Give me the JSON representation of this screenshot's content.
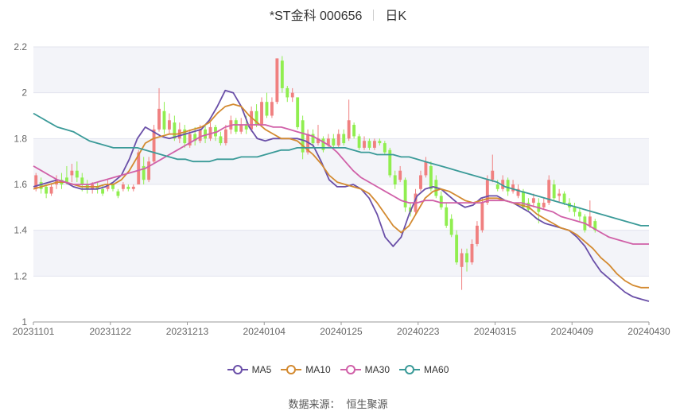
{
  "title": {
    "name": "*ST金科 000656",
    "period": "日K"
  },
  "source": {
    "label": "数据来源：",
    "value": "恒生聚源"
  },
  "chart_data": {
    "type": "candlestick",
    "ylim": [
      1.0,
      2.2
    ],
    "yticks": [
      "1",
      "1.2",
      "1.4",
      "1.6",
      "1.8",
      "2",
      "2.2"
    ],
    "ytick_values": [
      1.0,
      1.2,
      1.4,
      1.6,
      1.8,
      2.0,
      2.2
    ],
    "xticks": [
      "20231101",
      "20231122",
      "20231213",
      "20240104",
      "20240125",
      "20240223",
      "20240315",
      "20240409",
      "20240430"
    ],
    "n_bars": 120,
    "colors": {
      "up": "#f08080",
      "down": "#90ee50"
    },
    "candles": [
      {
        "o": 1.58,
        "c": 1.64,
        "h": 1.65,
        "l": 1.57
      },
      {
        "o": 1.61,
        "c": 1.58,
        "h": 1.63,
        "l": 1.56
      },
      {
        "o": 1.59,
        "c": 1.56,
        "h": 1.6,
        "l": 1.54
      },
      {
        "o": 1.56,
        "c": 1.59,
        "h": 1.6,
        "l": 1.55
      },
      {
        "o": 1.6,
        "c": 1.62,
        "h": 1.64,
        "l": 1.58
      },
      {
        "o": 1.62,
        "c": 1.6,
        "h": 1.65,
        "l": 1.58
      },
      {
        "o": 1.63,
        "c": 1.61,
        "h": 1.68,
        "l": 1.6
      },
      {
        "o": 1.64,
        "c": 1.66,
        "h": 1.69,
        "l": 1.61
      },
      {
        "o": 1.66,
        "c": 1.63,
        "h": 1.7,
        "l": 1.61
      },
      {
        "o": 1.63,
        "c": 1.6,
        "h": 1.65,
        "l": 1.57
      },
      {
        "o": 1.6,
        "c": 1.58,
        "h": 1.62,
        "l": 1.56
      },
      {
        "o": 1.58,
        "c": 1.6,
        "h": 1.61,
        "l": 1.56
      },
      {
        "o": 1.59,
        "c": 1.58,
        "h": 1.61,
        "l": 1.56
      },
      {
        "o": 1.58,
        "c": 1.56,
        "h": 1.6,
        "l": 1.55
      },
      {
        "o": 1.58,
        "c": 1.6,
        "h": 1.62,
        "l": 1.57
      },
      {
        "o": 1.6,
        "c": 1.58,
        "h": 1.61,
        "l": 1.57
      },
      {
        "o": 1.57,
        "c": 1.55,
        "h": 1.58,
        "l": 1.54
      },
      {
        "o": 1.58,
        "c": 1.6,
        "h": 1.61,
        "l": 1.57
      },
      {
        "o": 1.59,
        "c": 1.58,
        "h": 1.6,
        "l": 1.57
      },
      {
        "o": 1.58,
        "c": 1.59,
        "h": 1.6,
        "l": 1.57
      },
      {
        "o": 1.6,
        "c": 1.74,
        "h": 1.75,
        "l": 1.6
      },
      {
        "o": 1.68,
        "c": 1.62,
        "h": 1.72,
        "l": 1.6
      },
      {
        "o": 1.62,
        "c": 1.7,
        "h": 1.72,
        "l": 1.61
      },
      {
        "o": 1.7,
        "c": 1.84,
        "h": 1.86,
        "l": 1.69
      },
      {
        "o": 1.84,
        "c": 1.93,
        "h": 2.02,
        "l": 1.83
      },
      {
        "o": 1.92,
        "c": 1.84,
        "h": 1.96,
        "l": 1.82
      },
      {
        "o": 1.84,
        "c": 1.88,
        "h": 1.91,
        "l": 1.82
      },
      {
        "o": 1.87,
        "c": 1.8,
        "h": 1.9,
        "l": 1.79
      },
      {
        "o": 1.8,
        "c": 1.84,
        "h": 1.87,
        "l": 1.78
      },
      {
        "o": 1.84,
        "c": 1.78,
        "h": 1.86,
        "l": 1.76
      },
      {
        "o": 1.77,
        "c": 1.82,
        "h": 1.84,
        "l": 1.76
      },
      {
        "o": 1.82,
        "c": 1.79,
        "h": 1.85,
        "l": 1.77
      },
      {
        "o": 1.79,
        "c": 1.84,
        "h": 1.86,
        "l": 1.78
      },
      {
        "o": 1.84,
        "c": 1.8,
        "h": 1.86,
        "l": 1.78
      },
      {
        "o": 1.8,
        "c": 1.85,
        "h": 1.87,
        "l": 1.79
      },
      {
        "o": 1.85,
        "c": 1.81,
        "h": 1.86,
        "l": 1.79
      },
      {
        "o": 1.81,
        "c": 1.78,
        "h": 1.83,
        "l": 1.77
      },
      {
        "o": 1.78,
        "c": 1.84,
        "h": 1.86,
        "l": 1.77
      },
      {
        "o": 1.84,
        "c": 1.88,
        "h": 1.9,
        "l": 1.82
      },
      {
        "o": 1.88,
        "c": 1.83,
        "h": 1.89,
        "l": 1.82
      },
      {
        "o": 1.83,
        "c": 1.86,
        "h": 1.89,
        "l": 1.82
      },
      {
        "o": 1.86,
        "c": 1.84,
        "h": 1.9,
        "l": 1.82
      },
      {
        "o": 1.84,
        "c": 1.92,
        "h": 1.94,
        "l": 1.83
      },
      {
        "o": 1.92,
        "c": 1.86,
        "h": 1.95,
        "l": 1.85
      },
      {
        "o": 1.86,
        "c": 1.96,
        "h": 1.98,
        "l": 1.85
      },
      {
        "o": 1.96,
        "c": 1.9,
        "h": 2.0,
        "l": 1.89
      },
      {
        "o": 1.9,
        "c": 1.96,
        "h": 1.98,
        "l": 1.89
      },
      {
        "o": 1.96,
        "c": 2.15,
        "h": 2.15,
        "l": 1.95
      },
      {
        "o": 2.14,
        "c": 2.02,
        "h": 2.16,
        "l": 2.0
      },
      {
        "o": 2.02,
        "c": 1.98,
        "h": 2.03,
        "l": 1.96
      },
      {
        "o": 1.98,
        "c": 2.0,
        "h": 2.02,
        "l": 1.96
      },
      {
        "o": 1.98,
        "c": 1.85,
        "h": 1.98,
        "l": 1.84
      },
      {
        "o": 1.88,
        "c": 1.74,
        "h": 1.9,
        "l": 1.71
      },
      {
        "o": 1.74,
        "c": 1.82,
        "h": 1.84,
        "l": 1.73
      },
      {
        "o": 1.82,
        "c": 1.78,
        "h": 1.84,
        "l": 1.76
      },
      {
        "o": 1.78,
        "c": 1.8,
        "h": 1.86,
        "l": 1.77
      },
      {
        "o": 1.8,
        "c": 1.75,
        "h": 1.81,
        "l": 1.74
      },
      {
        "o": 1.77,
        "c": 1.8,
        "h": 1.82,
        "l": 1.76
      },
      {
        "o": 1.8,
        "c": 1.77,
        "h": 1.82,
        "l": 1.76
      },
      {
        "o": 1.77,
        "c": 1.82,
        "h": 1.84,
        "l": 1.76
      },
      {
        "o": 1.82,
        "c": 1.78,
        "h": 1.84,
        "l": 1.77
      },
      {
        "o": 1.8,
        "c": 1.88,
        "h": 1.97,
        "l": 1.79
      },
      {
        "o": 1.86,
        "c": 1.81,
        "h": 1.87,
        "l": 1.8
      },
      {
        "o": 1.81,
        "c": 1.76,
        "h": 1.82,
        "l": 1.75
      },
      {
        "o": 1.76,
        "c": 1.79,
        "h": 1.81,
        "l": 1.75
      },
      {
        "o": 1.79,
        "c": 1.76,
        "h": 1.8,
        "l": 1.75
      },
      {
        "o": 1.76,
        "c": 1.79,
        "h": 1.8,
        "l": 1.75
      },
      {
        "o": 1.79,
        "c": 1.78,
        "h": 1.8,
        "l": 1.77
      },
      {
        "o": 1.78,
        "c": 1.74,
        "h": 1.79,
        "l": 1.73
      },
      {
        "o": 1.75,
        "c": 1.64,
        "h": 1.76,
        "l": 1.63
      },
      {
        "o": 1.64,
        "c": 1.6,
        "h": 1.66,
        "l": 1.58
      },
      {
        "o": 1.62,
        "c": 1.66,
        "h": 1.68,
        "l": 1.61
      },
      {
        "o": 1.62,
        "c": 1.5,
        "h": 1.63,
        "l": 1.48
      },
      {
        "o": 1.5,
        "c": 1.48,
        "h": 1.52,
        "l": 1.46
      },
      {
        "o": 1.48,
        "c": 1.56,
        "h": 1.58,
        "l": 1.47
      },
      {
        "o": 1.58,
        "c": 1.64,
        "h": 1.66,
        "l": 1.57
      },
      {
        "o": 1.64,
        "c": 1.7,
        "h": 1.72,
        "l": 1.63
      },
      {
        "o": 1.68,
        "c": 1.58,
        "h": 1.7,
        "l": 1.57
      },
      {
        "o": 1.62,
        "c": 1.55,
        "h": 1.64,
        "l": 1.54
      },
      {
        "o": 1.55,
        "c": 1.5,
        "h": 1.57,
        "l": 1.49
      },
      {
        "o": 1.5,
        "c": 1.42,
        "h": 1.52,
        "l": 1.41
      },
      {
        "o": 1.45,
        "c": 1.38,
        "h": 1.47,
        "l": 1.37
      },
      {
        "o": 1.38,
        "c": 1.26,
        "h": 1.4,
        "l": 1.25
      },
      {
        "o": 1.24,
        "c": 1.3,
        "h": 1.32,
        "l": 1.14
      },
      {
        "o": 1.3,
        "c": 1.26,
        "h": 1.32,
        "l": 1.22
      },
      {
        "o": 1.26,
        "c": 1.34,
        "h": 1.36,
        "l": 1.25
      },
      {
        "o": 1.34,
        "c": 1.42,
        "h": 1.44,
        "l": 1.33
      },
      {
        "o": 1.4,
        "c": 1.52,
        "h": 1.54,
        "l": 1.39
      },
      {
        "o": 1.52,
        "c": 1.62,
        "h": 1.64,
        "l": 1.51
      },
      {
        "o": 1.62,
        "c": 1.66,
        "h": 1.73,
        "l": 1.61
      },
      {
        "o": 1.6,
        "c": 1.58,
        "h": 1.62,
        "l": 1.57
      },
      {
        "o": 1.58,
        "c": 1.62,
        "h": 1.64,
        "l": 1.57
      },
      {
        "o": 1.62,
        "c": 1.57,
        "h": 1.63,
        "l": 1.55
      },
      {
        "o": 1.57,
        "c": 1.6,
        "h": 1.62,
        "l": 1.56
      },
      {
        "o": 1.55,
        "c": 1.58,
        "h": 1.6,
        "l": 1.54
      },
      {
        "o": 1.57,
        "c": 1.5,
        "h": 1.58,
        "l": 1.49
      },
      {
        "o": 1.52,
        "c": 1.49,
        "h": 1.54,
        "l": 1.48
      },
      {
        "o": 1.52,
        "c": 1.54,
        "h": 1.56,
        "l": 1.5
      },
      {
        "o": 1.52,
        "c": 1.48,
        "h": 1.54,
        "l": 1.43
      },
      {
        "o": 1.5,
        "c": 1.52,
        "h": 1.54,
        "l": 1.49
      },
      {
        "o": 1.52,
        "c": 1.62,
        "h": 1.64,
        "l": 1.51
      },
      {
        "o": 1.6,
        "c": 1.54,
        "h": 1.62,
        "l": 1.53
      },
      {
        "o": 1.55,
        "c": 1.56,
        "h": 1.58,
        "l": 1.52
      },
      {
        "o": 1.56,
        "c": 1.52,
        "h": 1.57,
        "l": 1.51
      },
      {
        "o": 1.52,
        "c": 1.5,
        "h": 1.54,
        "l": 1.48
      },
      {
        "o": 1.5,
        "c": 1.48,
        "h": 1.52,
        "l": 1.46
      },
      {
        "o": 1.48,
        "c": 1.46,
        "h": 1.5,
        "l": 1.44
      },
      {
        "o": 1.46,
        "c": 1.4,
        "h": 1.47,
        "l": 1.39
      },
      {
        "o": 1.42,
        "c": 1.46,
        "h": 1.53,
        "l": 1.41
      },
      {
        "o": 1.44,
        "c": 1.4,
        "h": 1.45,
        "l": 1.39
      }
    ],
    "series": [
      {
        "name": "MA5",
        "color": "#6a4fa8",
        "values": [
          1.59,
          1.6,
          1.61,
          1.62,
          1.61,
          1.59,
          1.58,
          1.58,
          1.58,
          1.59,
          1.61,
          1.64,
          1.71,
          1.8,
          1.85,
          1.83,
          1.81,
          1.8,
          1.81,
          1.82,
          1.83,
          1.84,
          1.88,
          1.94,
          2.01,
          2.0,
          1.94,
          1.85,
          1.8,
          1.79,
          1.8,
          1.8,
          1.8,
          1.8,
          1.79,
          1.77,
          1.7,
          1.62,
          1.59,
          1.59,
          1.6,
          1.58,
          1.54,
          1.47,
          1.37,
          1.33,
          1.37,
          1.47,
          1.55,
          1.58,
          1.59,
          1.58,
          1.55,
          1.52,
          1.5,
          1.51,
          1.54,
          1.55,
          1.55,
          1.53,
          1.52,
          1.5,
          1.48,
          1.45,
          1.43,
          1.42,
          1.41,
          1.4,
          1.37,
          1.33,
          1.27,
          1.22,
          1.19,
          1.16,
          1.13,
          1.11,
          1.1,
          1.09
        ]
      },
      {
        "name": "MA10",
        "color": "#d38a30",
        "values": [
          1.58,
          1.59,
          1.6,
          1.61,
          1.61,
          1.6,
          1.59,
          1.59,
          1.59,
          1.6,
          1.6,
          1.62,
          1.66,
          1.72,
          1.78,
          1.8,
          1.81,
          1.82,
          1.82,
          1.83,
          1.84,
          1.85,
          1.87,
          1.91,
          1.94,
          1.95,
          1.94,
          1.9,
          1.87,
          1.84,
          1.82,
          1.8,
          1.8,
          1.79,
          1.76,
          1.73,
          1.69,
          1.64,
          1.61,
          1.6,
          1.59,
          1.58,
          1.56,
          1.52,
          1.47,
          1.42,
          1.39,
          1.42,
          1.48,
          1.54,
          1.57,
          1.58,
          1.57,
          1.55,
          1.53,
          1.52,
          1.53,
          1.54,
          1.54,
          1.53,
          1.52,
          1.51,
          1.5,
          1.47,
          1.45,
          1.43,
          1.41,
          1.4,
          1.38,
          1.35,
          1.32,
          1.28,
          1.25,
          1.21,
          1.18,
          1.16,
          1.15,
          1.15
        ]
      },
      {
        "name": "MA30",
        "color": "#d060a8",
        "values": [
          1.68,
          1.66,
          1.64,
          1.62,
          1.61,
          1.6,
          1.6,
          1.6,
          1.61,
          1.62,
          1.63,
          1.64,
          1.65,
          1.66,
          1.67,
          1.69,
          1.71,
          1.73,
          1.75,
          1.77,
          1.79,
          1.81,
          1.82,
          1.83,
          1.85,
          1.86,
          1.86,
          1.86,
          1.86,
          1.86,
          1.85,
          1.85,
          1.84,
          1.83,
          1.82,
          1.81,
          1.79,
          1.77,
          1.74,
          1.7,
          1.66,
          1.63,
          1.61,
          1.59,
          1.57,
          1.55,
          1.53,
          1.52,
          1.52,
          1.53,
          1.53,
          1.52,
          1.52,
          1.52,
          1.52,
          1.52,
          1.52,
          1.53,
          1.53,
          1.53,
          1.52,
          1.52,
          1.51,
          1.5,
          1.49,
          1.48,
          1.46,
          1.45,
          1.44,
          1.43,
          1.41,
          1.39,
          1.37,
          1.36,
          1.35,
          1.34,
          1.34,
          1.34
        ]
      },
      {
        "name": "MA60",
        "color": "#3a9a98",
        "values": [
          1.91,
          1.89,
          1.87,
          1.85,
          1.84,
          1.83,
          1.81,
          1.79,
          1.78,
          1.77,
          1.76,
          1.76,
          1.76,
          1.76,
          1.75,
          1.74,
          1.73,
          1.72,
          1.71,
          1.71,
          1.7,
          1.7,
          1.7,
          1.71,
          1.71,
          1.71,
          1.72,
          1.72,
          1.72,
          1.73,
          1.74,
          1.75,
          1.75,
          1.76,
          1.76,
          1.76,
          1.76,
          1.76,
          1.76,
          1.76,
          1.75,
          1.74,
          1.74,
          1.73,
          1.73,
          1.73,
          1.72,
          1.72,
          1.71,
          1.7,
          1.69,
          1.68,
          1.67,
          1.66,
          1.65,
          1.64,
          1.63,
          1.62,
          1.61,
          1.59,
          1.58,
          1.57,
          1.56,
          1.55,
          1.54,
          1.53,
          1.52,
          1.51,
          1.5,
          1.49,
          1.48,
          1.47,
          1.46,
          1.45,
          1.44,
          1.43,
          1.42,
          1.42
        ]
      }
    ],
    "legend": [
      "MA5",
      "MA10",
      "MA30",
      "MA60"
    ],
    "legend_placement": "bottom-center",
    "grid": true
  }
}
